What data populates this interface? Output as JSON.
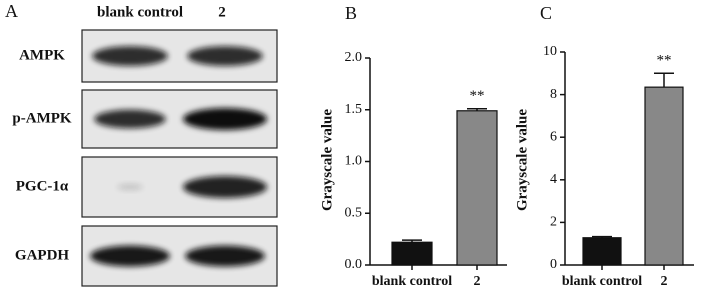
{
  "blot": {
    "panel": "A",
    "columns": [
      "blank control",
      "2"
    ],
    "rows": [
      "AMPK",
      "p-AMPK",
      "PGC-1α",
      "GAPDH"
    ]
  },
  "chart_data": [
    {
      "type": "bar",
      "panel": "B",
      "ylabel": "Grayscale value",
      "categories": [
        "blank control",
        "2"
      ],
      "values": [
        0.22,
        1.49
      ],
      "errors": [
        0.02,
        0.02
      ],
      "colors": [
        "#111111",
        "#888888"
      ],
      "significance": [
        null,
        "**"
      ],
      "ylim": [
        0,
        2
      ],
      "yticks": [
        {
          "value": 0,
          "label": "0.0"
        },
        {
          "value": 0.5,
          "label": "0.5"
        },
        {
          "value": 1,
          "label": "1.0"
        },
        {
          "value": 1.5,
          "label": "1.5"
        },
        {
          "value": 2,
          "label": "2.0"
        }
      ]
    },
    {
      "type": "bar",
      "panel": "C",
      "ylabel": "Grayscale value",
      "categories": [
        "blank control",
        "2"
      ],
      "values": [
        1.28,
        8.35
      ],
      "errors": [
        0.05,
        0.65
      ],
      "colors": [
        "#111111",
        "#888888"
      ],
      "significance": [
        null,
        "**"
      ],
      "ylim": [
        0,
        10
      ],
      "yticks": [
        0,
        2,
        4,
        6,
        8,
        10
      ]
    }
  ]
}
